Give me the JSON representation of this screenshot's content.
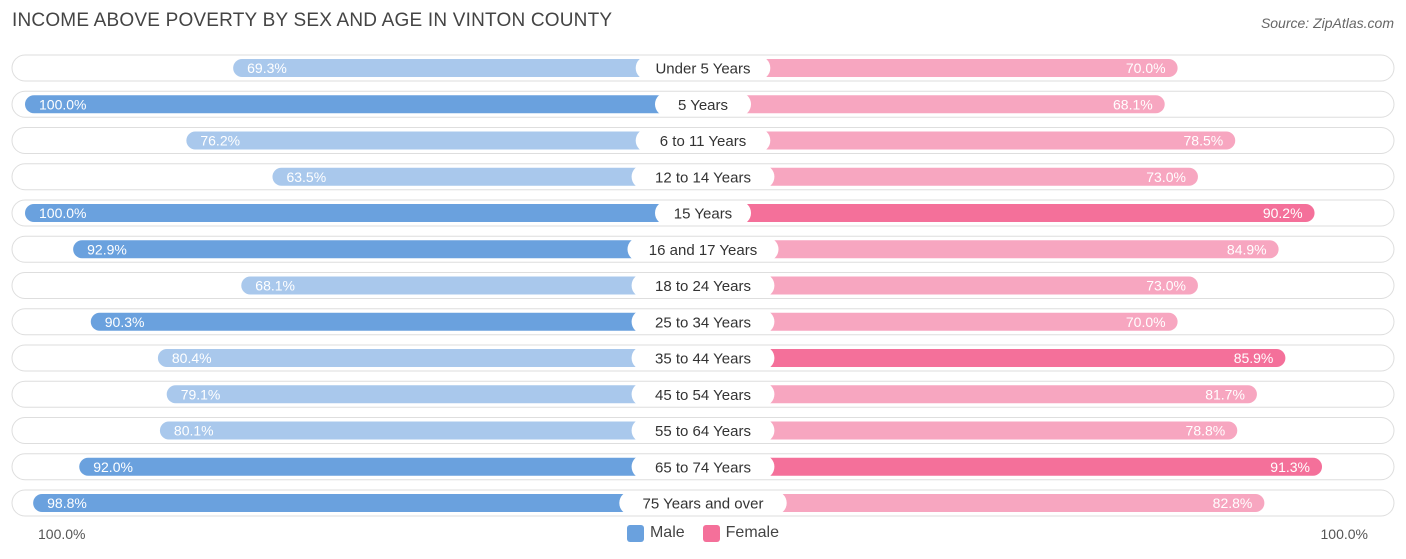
{
  "header": {
    "title": "INCOME ABOVE POVERTY BY SEX AND AGE IN VINTON COUNTY",
    "source": "Source: ZipAtlas.com"
  },
  "colors": {
    "male_strong": "#6aa1de",
    "male_light": "#a9c8ec",
    "female_strong": "#f4709a",
    "female_light": "#f7a6c0",
    "track": "#f0f0f0"
  },
  "axis": {
    "left_label": "100.0%",
    "right_label": "100.0%"
  },
  "legend": {
    "male": "Male",
    "female": "Female"
  },
  "chart_data": {
    "type": "bar",
    "orientation": "horizontal-diverging",
    "title": "INCOME ABOVE POVERTY BY SEX AND AGE IN VINTON COUNTY",
    "xlim": [
      0,
      100
    ],
    "unit": "%",
    "categories": [
      "Under 5 Years",
      "5 Years",
      "6 to 11 Years",
      "12 to 14 Years",
      "15 Years",
      "16 and 17 Years",
      "18 to 24 Years",
      "25 to 34 Years",
      "35 to 44 Years",
      "45 to 54 Years",
      "55 to 64 Years",
      "65 to 74 Years",
      "75 Years and over"
    ],
    "series": [
      {
        "name": "Male",
        "values": [
          69.3,
          100.0,
          76.2,
          63.5,
          100.0,
          92.9,
          68.1,
          90.3,
          80.4,
          79.1,
          80.1,
          92.0,
          98.8
        ]
      },
      {
        "name": "Female",
        "values": [
          70.0,
          68.1,
          78.5,
          73.0,
          90.2,
          84.9,
          73.0,
          70.0,
          85.9,
          81.7,
          78.8,
          91.3,
          82.8
        ]
      }
    ],
    "legend_position": "bottom-center"
  }
}
